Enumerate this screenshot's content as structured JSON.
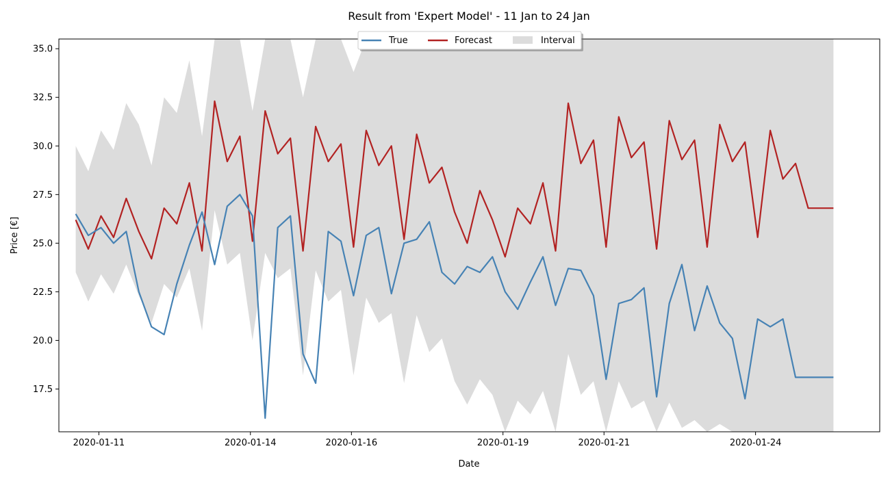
{
  "chart_data": {
    "type": "line",
    "title": "Result from 'Expert Model' - 11 Jan to 24 Jan",
    "xlabel": "Date",
    "ylabel": "Price [€]",
    "xlim": [
      "2020-01-10T05:00",
      "2020-01-26T11:00"
    ],
    "ylim": [
      15.3,
      35.5
    ],
    "yticks": [
      17.5,
      20.0,
      22.5,
      25.0,
      27.5,
      30.0,
      32.5,
      35.0
    ],
    "ytick_labels": [
      "17.5",
      "20.0",
      "22.5",
      "25.0",
      "27.5",
      "30.0",
      "32.5",
      "35.0"
    ],
    "xticks": [
      "2020-01-11",
      "2020-01-14",
      "2020-01-16",
      "2020-01-19",
      "2020-01-21",
      "2020-01-24"
    ],
    "grid": false,
    "legend_placement": "top-center",
    "legend": [
      {
        "label": "True",
        "kind": "line",
        "color": "#4682b4"
      },
      {
        "label": "Forecast",
        "kind": "line",
        "color": "#b22222"
      },
      {
        "label": "Interval",
        "kind": "patch",
        "color": "#dcdcdc"
      }
    ],
    "x": [
      "2020-01-10T13:00",
      "2020-01-10T19:00",
      "2020-01-11T01:00",
      "2020-01-11T07:00",
      "2020-01-11T13:00",
      "2020-01-11T19:00",
      "2020-01-12T01:00",
      "2020-01-12T07:00",
      "2020-01-12T13:00",
      "2020-01-12T19:00",
      "2020-01-13T01:00",
      "2020-01-13T07:00",
      "2020-01-13T13:00",
      "2020-01-13T19:00",
      "2020-01-14T01:00",
      "2020-01-14T07:00",
      "2020-01-14T13:00",
      "2020-01-14T19:00",
      "2020-01-15T01:00",
      "2020-01-15T07:00",
      "2020-01-15T13:00",
      "2020-01-15T19:00",
      "2020-01-16T01:00",
      "2020-01-16T07:00",
      "2020-01-16T13:00",
      "2020-01-16T19:00",
      "2020-01-17T01:00",
      "2020-01-17T07:00",
      "2020-01-17T13:00",
      "2020-01-17T19:00",
      "2020-01-18T01:00",
      "2020-01-18T07:00",
      "2020-01-18T13:00",
      "2020-01-18T19:00",
      "2020-01-19T01:00",
      "2020-01-19T07:00",
      "2020-01-19T13:00",
      "2020-01-19T19:00",
      "2020-01-20T01:00",
      "2020-01-20T07:00",
      "2020-01-20T13:00",
      "2020-01-20T19:00",
      "2020-01-21T01:00",
      "2020-01-21T07:00",
      "2020-01-21T13:00",
      "2020-01-21T19:00",
      "2020-01-22T01:00",
      "2020-01-22T07:00",
      "2020-01-22T13:00",
      "2020-01-22T19:00",
      "2020-01-23T01:00",
      "2020-01-23T07:00",
      "2020-01-23T13:00",
      "2020-01-23T19:00",
      "2020-01-24T01:00",
      "2020-01-24T07:00",
      "2020-01-24T13:00",
      "2020-01-24T19:00",
      "2020-01-25T01:00",
      "2020-01-25T07:00",
      "2020-01-25T13:00"
    ],
    "series": [
      {
        "name": "True",
        "color": "#4682b4",
        "values": [
          26.5,
          25.4,
          25.8,
          25.0,
          25.6,
          22.5,
          20.7,
          20.3,
          22.9,
          24.9,
          26.6,
          23.9,
          26.9,
          27.5,
          26.4,
          16.0,
          25.8,
          26.4,
          19.3,
          17.8,
          25.6,
          25.1,
          22.3,
          25.4,
          25.8,
          22.4,
          25.0,
          25.2,
          26.1,
          23.5,
          22.9,
          23.8,
          23.5,
          24.3,
          22.5,
          21.6,
          23.0,
          24.3,
          21.8,
          23.7,
          23.6,
          22.3,
          18.0,
          21.9,
          22.1,
          22.7,
          17.1,
          21.9,
          23.9,
          20.5,
          22.8,
          20.9,
          20.1,
          17.0,
          21.1,
          20.7,
          21.1,
          18.1,
          18.1,
          18.1,
          18.1
        ]
      },
      {
        "name": "Forecast",
        "color": "#b22222",
        "values": [
          26.2,
          24.7,
          26.4,
          25.3,
          27.3,
          25.6,
          24.2,
          26.8,
          26.0,
          28.1,
          24.6,
          32.3,
          29.2,
          30.5,
          25.1,
          31.8,
          29.6,
          30.4,
          24.6,
          31.0,
          29.2,
          30.1,
          24.8,
          30.8,
          29.0,
          30.0,
          25.2,
          30.6,
          28.1,
          28.9,
          26.6,
          25.0,
          27.7,
          26.2,
          24.3,
          26.8,
          26.0,
          28.1,
          24.6,
          32.2,
          29.1,
          30.3,
          24.8,
          31.5,
          29.4,
          30.2,
          24.7,
          31.3,
          29.3,
          30.3,
          24.8,
          31.1,
          29.2,
          30.2,
          25.3,
          30.8,
          28.3,
          29.1,
          26.8,
          26.8,
          26.8
        ]
      },
      {
        "name": "Interval upper",
        "color": "#dcdcdc",
        "values": [
          30.0,
          28.7,
          30.8,
          29.8,
          32.2,
          31.1,
          29.0,
          32.5,
          31.7,
          34.4,
          30.5,
          35.5,
          35.5,
          35.5,
          31.8,
          35.5,
          35.5,
          35.5,
          32.5,
          35.5,
          35.5,
          35.5,
          33.8,
          35.5,
          35.5,
          35.5,
          35.5,
          35.5,
          35.5,
          35.5,
          35.5,
          35.5,
          35.5,
          35.5,
          35.5,
          35.5,
          35.5,
          35.5,
          35.5,
          35.5,
          35.5,
          35.5,
          35.5,
          35.5,
          35.5,
          35.5,
          35.5,
          35.5,
          35.5,
          35.5,
          35.5,
          35.5,
          35.5,
          35.5,
          35.5,
          35.5,
          35.5,
          35.5,
          35.5,
          35.5,
          35.5
        ]
      },
      {
        "name": "Interval lower",
        "color": "#dcdcdc",
        "values": [
          23.5,
          22.0,
          23.4,
          22.4,
          23.9,
          22.3,
          20.9,
          22.9,
          22.2,
          23.7,
          20.5,
          26.7,
          23.9,
          24.5,
          20.0,
          24.5,
          23.2,
          23.7,
          18.2,
          23.6,
          22.0,
          22.6,
          18.2,
          22.2,
          20.9,
          21.4,
          17.8,
          21.3,
          19.4,
          20.1,
          17.9,
          16.7,
          18.0,
          17.2,
          15.3,
          16.9,
          16.2,
          17.4,
          15.3,
          19.3,
          17.2,
          17.9,
          15.3,
          17.9,
          16.5,
          16.9,
          15.3,
          16.8,
          15.5,
          15.9,
          15.3,
          15.7,
          15.3,
          15.3,
          15.3,
          15.3,
          15.3,
          15.3,
          15.3,
          15.3,
          15.3
        ]
      }
    ]
  }
}
